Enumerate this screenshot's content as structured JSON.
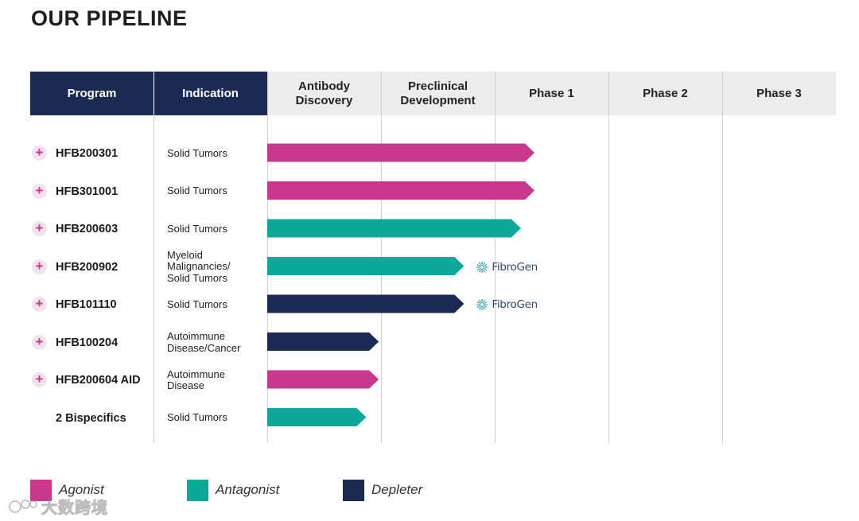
{
  "title": "OUR PIPELINE",
  "columns": {
    "program": "Program",
    "indication": "Indication",
    "stages": [
      "Antibody Discovery",
      "Preclinical Development",
      "Phase 1",
      "Phase 2",
      "Phase 3"
    ]
  },
  "colors": {
    "agonist": "#c8388c",
    "antagonist": "#0ca89a",
    "depleter": "#1b2a52",
    "header_dark": "#1b2a52",
    "header_light": "#ececec"
  },
  "legend": [
    {
      "label": "Agonist",
      "color": "#c8388c"
    },
    {
      "label": "Antagonist",
      "color": "#0ca89a"
    },
    {
      "label": "Depleter",
      "color": "#1b2a52"
    }
  ],
  "watermark": "大数跨境",
  "chart_data": {
    "type": "bar",
    "orientation": "horizontal",
    "x_stages": [
      "Antibody Discovery",
      "Preclinical Development",
      "Phase 1",
      "Phase 2",
      "Phase 3"
    ],
    "series": [
      {
        "name": "Agonist",
        "color": "#c8388c"
      },
      {
        "name": "Antagonist",
        "color": "#0ca89a"
      },
      {
        "name": "Depleter",
        "color": "#1b2a52"
      }
    ],
    "programs": [
      {
        "program": "HFB200301",
        "indication": [
          "Solid Tumors"
        ],
        "type": "Agonist",
        "progress": 2.35,
        "partner": "",
        "expandable": true
      },
      {
        "program": "HFB301001",
        "indication": [
          "Solid Tumors"
        ],
        "type": "Agonist",
        "progress": 2.35,
        "partner": "",
        "expandable": true
      },
      {
        "program": "HFB200603",
        "indication": [
          "Solid Tumors"
        ],
        "type": "Antagonist",
        "progress": 2.23,
        "partner": "",
        "expandable": true
      },
      {
        "program": "HFB200902",
        "indication": [
          "Myeloid",
          "Malignancies/",
          "Solid Tumors"
        ],
        "type": "Antagonist",
        "progress": 1.73,
        "partner": "FibroGen",
        "expandable": true
      },
      {
        "program": "HFB101110",
        "indication": [
          "Solid Tumors"
        ],
        "type": "Depleter",
        "progress": 1.73,
        "partner": "FibroGen",
        "expandable": true
      },
      {
        "program": "HFB100204",
        "indication": [
          "Autoimmune",
          "Disease/Cancer"
        ],
        "type": "Depleter",
        "progress": 0.98,
        "partner": "",
        "expandable": true
      },
      {
        "program": "HFB200604 AID",
        "indication": [
          "Autoimmune",
          "Disease"
        ],
        "type": "Agonist",
        "progress": 0.98,
        "partner": "",
        "expandable": true
      },
      {
        "program": "2 Bispecifics",
        "indication": [
          "Solid Tumors"
        ],
        "type": "Antagonist",
        "progress": 0.87,
        "partner": "",
        "expandable": false
      }
    ]
  }
}
